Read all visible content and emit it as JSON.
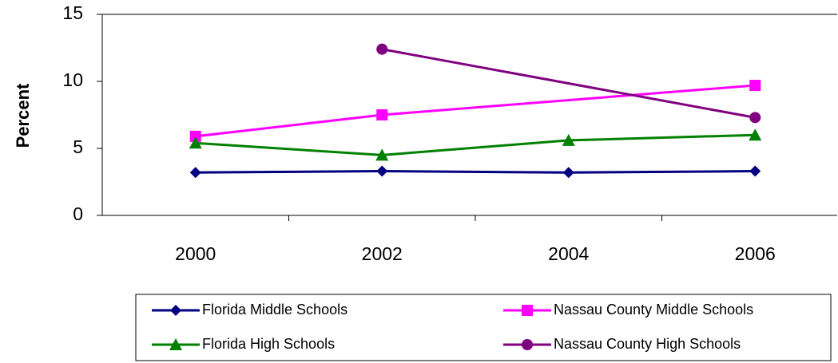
{
  "chart_data": {
    "type": "line",
    "y_label": "Percent",
    "categories": [
      "2000",
      "2002",
      "2004",
      "2006"
    ],
    "series": [
      {
        "name": "Florida Middle Schools",
        "color": "#000080",
        "marker": "diamond",
        "values": [
          3.2,
          3.3,
          3.2,
          3.3
        ]
      },
      {
        "name": "Nassau County Middle Schools",
        "color": "#ff00ff",
        "marker": "square",
        "values": [
          5.9,
          7.5,
          null,
          9.7
        ]
      },
      {
        "name": "Florida High Schools",
        "color": "#008000",
        "marker": "triangle",
        "values": [
          5.4,
          4.5,
          5.6,
          6.0
        ]
      },
      {
        "name": "Nassau County High Schools",
        "color": "#800080",
        "marker": "circle",
        "values": [
          null,
          12.4,
          null,
          7.3
        ]
      }
    ],
    "span_gaps": true,
    "ylim": [
      0,
      15
    ],
    "yticks": [
      0,
      5,
      10,
      15
    ],
    "grid": false
  }
}
